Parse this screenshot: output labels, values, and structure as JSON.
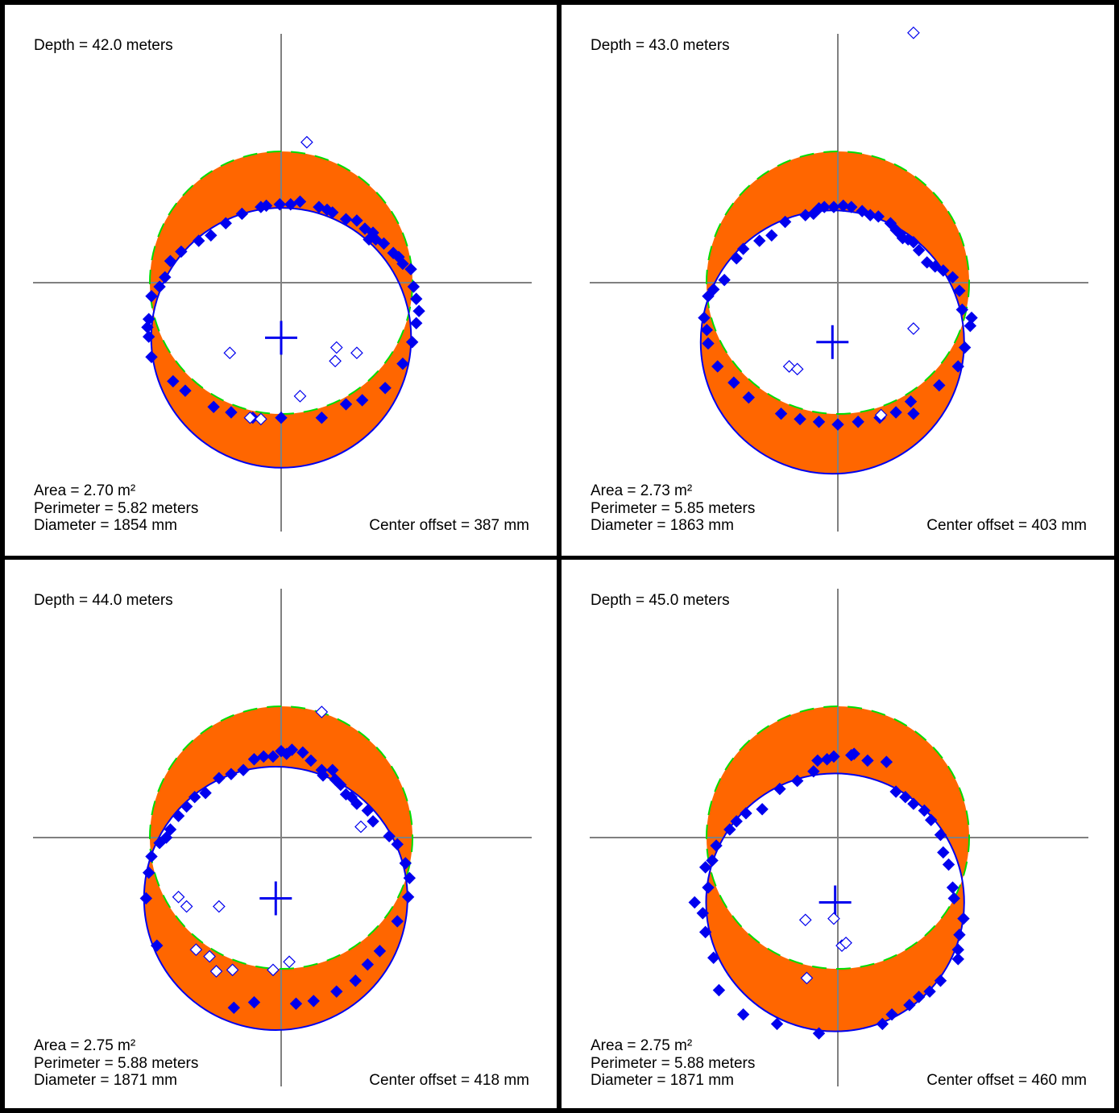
{
  "colors": {
    "measured": "#0000ee",
    "design": "#00dd00",
    "overbreak": "#ff6600",
    "axes": "#808080",
    "border": "#000000"
  },
  "chart_data": [
    {
      "type": "scatter",
      "depth_label": "Depth = 42.0 meters",
      "area_label": "Area = 2.70 m²",
      "perimeter_label": "Perimeter = 5.82 meters",
      "diameter_label": "Diameter = 1854 mm",
      "offset_label": "Center offset = 387 mm",
      "design_radius": 972,
      "fitted_center": [
        0,
        -408
      ],
      "fitted_radius": 962,
      "measured_points": [
        [
          -990,
          -330
        ],
        [
          -980,
          -270
        ],
        [
          -960,
          -100
        ],
        [
          -900,
          -30
        ],
        [
          -860,
          40
        ],
        [
          -820,
          160
        ],
        [
          -740,
          230
        ],
        [
          -610,
          310
        ],
        [
          -520,
          350
        ],
        [
          -410,
          440
        ],
        [
          -290,
          510
        ],
        [
          -150,
          560
        ],
        [
          -110,
          570
        ],
        [
          -10,
          580
        ],
        [
          70,
          580
        ],
        [
          140,
          600
        ],
        [
          280,
          560
        ],
        [
          340,
          540
        ],
        [
          380,
          520
        ],
        [
          480,
          470
        ],
        [
          560,
          460
        ],
        [
          620,
          400
        ],
        [
          680,
          370
        ],
        [
          650,
          320
        ],
        [
          700,
          320
        ],
        [
          760,
          290
        ],
        [
          830,
          220
        ],
        [
          870,
          190
        ],
        [
          900,
          140
        ],
        [
          960,
          100
        ],
        [
          980,
          -30
        ],
        [
          1000,
          -120
        ],
        [
          1020,
          -210
        ],
        [
          1000,
          -300
        ],
        [
          970,
          -440
        ],
        [
          900,
          -600
        ],
        [
          770,
          -780
        ],
        [
          600,
          -870
        ],
        [
          480,
          -900
        ],
        [
          300,
          -1000
        ],
        [
          0,
          -1000
        ],
        [
          -210,
          -1000
        ],
        [
          -370,
          -960
        ],
        [
          -500,
          -920
        ],
        [
          -710,
          -800
        ],
        [
          -800,
          -730
        ],
        [
          -960,
          -550
        ],
        [
          -980,
          -400
        ]
      ],
      "outlier_points": [
        [
          190,
          1040
        ],
        [
          -380,
          -520
        ],
        [
          400,
          -580
        ],
        [
          140,
          -840
        ],
        [
          -230,
          -1000
        ],
        [
          -150,
          -1010
        ],
        [
          410,
          -480
        ],
        [
          560,
          -520
        ]
      ],
      "show_design_circle": true
    },
    {
      "type": "scatter",
      "depth_label": "Depth = 43.0 meters",
      "area_label": "Area = 2.73 m²",
      "perimeter_label": "Perimeter = 5.85 meters",
      "diameter_label": "Diameter = 1863 mm",
      "offset_label": "Center offset = 403 mm",
      "design_radius": 972,
      "fitted_center": [
        -40,
        -440
      ],
      "fitted_radius": 975,
      "measured_points": [
        [
          -990,
          -260
        ],
        [
          -960,
          -100
        ],
        [
          -920,
          -50
        ],
        [
          -840,
          20
        ],
        [
          -750,
          180
        ],
        [
          -700,
          250
        ],
        [
          -580,
          310
        ],
        [
          -490,
          350
        ],
        [
          -390,
          450
        ],
        [
          -240,
          500
        ],
        [
          -180,
          510
        ],
        [
          -140,
          550
        ],
        [
          -100,
          560
        ],
        [
          -30,
          560
        ],
        [
          40,
          570
        ],
        [
          100,
          560
        ],
        [
          180,
          530
        ],
        [
          240,
          500
        ],
        [
          300,
          490
        ],
        [
          390,
          440
        ],
        [
          460,
          360
        ],
        [
          430,
          390
        ],
        [
          480,
          330
        ],
        [
          520,
          320
        ],
        [
          560,
          300
        ],
        [
          600,
          240
        ],
        [
          660,
          150
        ],
        [
          720,
          120
        ],
        [
          780,
          90
        ],
        [
          850,
          40
        ],
        [
          900,
          -60
        ],
        [
          920,
          -200
        ],
        [
          990,
          -260
        ],
        [
          980,
          -320
        ],
        [
          940,
          -480
        ],
        [
          890,
          -620
        ],
        [
          750,
          -760
        ],
        [
          540,
          -880
        ],
        [
          430,
          -960
        ],
        [
          310,
          -1000
        ],
        [
          150,
          -1030
        ],
        [
          0,
          -1050
        ],
        [
          -140,
          -1030
        ],
        [
          -280,
          -1010
        ],
        [
          -420,
          -970
        ],
        [
          -660,
          -850
        ],
        [
          -770,
          -740
        ],
        [
          -890,
          -620
        ],
        [
          -960,
          -450
        ],
        [
          -970,
          -350
        ],
        [
          560,
          -970
        ]
      ],
      "outlier_points": [
        [
          560,
          1850
        ],
        [
          560,
          -340
        ],
        [
          -360,
          -620
        ],
        [
          -300,
          -640
        ],
        [
          320,
          -980
        ]
      ],
      "show_design_circle": true
    },
    {
      "type": "scatter",
      "depth_label": "Depth = 44.0 meters",
      "area_label": "Area = 2.75 m²",
      "perimeter_label": "Perimeter = 5.88 meters",
      "diameter_label": "Diameter = 1871 mm",
      "offset_label": "Center offset = 418 mm",
      "design_radius": 972,
      "fitted_center": [
        -40,
        -450
      ],
      "fitted_radius": 975,
      "measured_points": [
        [
          -1000,
          -450
        ],
        [
          -980,
          -260
        ],
        [
          -960,
          -140
        ],
        [
          -900,
          -40
        ],
        [
          -850,
          0
        ],
        [
          -820,
          60
        ],
        [
          -760,
          160
        ],
        [
          -700,
          230
        ],
        [
          -640,
          300
        ],
        [
          -560,
          330
        ],
        [
          -460,
          440
        ],
        [
          -370,
          470
        ],
        [
          -280,
          500
        ],
        [
          -200,
          580
        ],
        [
          -130,
          600
        ],
        [
          -60,
          600
        ],
        [
          0,
          640
        ],
        [
          40,
          620
        ],
        [
          80,
          650
        ],
        [
          160,
          630
        ],
        [
          220,
          570
        ],
        [
          300,
          500
        ],
        [
          310,
          460
        ],
        [
          380,
          500
        ],
        [
          400,
          430
        ],
        [
          440,
          390
        ],
        [
          480,
          320
        ],
        [
          520,
          300
        ],
        [
          560,
          250
        ],
        [
          640,
          200
        ],
        [
          680,
          120
        ],
        [
          800,
          10
        ],
        [
          860,
          -50
        ],
        [
          920,
          -190
        ],
        [
          950,
          -300
        ],
        [
          940,
          -440
        ],
        [
          860,
          -620
        ],
        [
          730,
          -840
        ],
        [
          640,
          -940
        ],
        [
          550,
          -1060
        ],
        [
          410,
          -1140
        ],
        [
          240,
          -1210
        ],
        [
          110,
          -1230
        ],
        [
          -200,
          -1220
        ],
        [
          -350,
          -1260
        ],
        [
          -920,
          -800
        ]
      ],
      "outlier_points": [
        [
          300,
          930
        ],
        [
          590,
          80
        ],
        [
          -760,
          -440
        ],
        [
          -700,
          -510
        ],
        [
          -460,
          -510
        ],
        [
          -630,
          -830
        ],
        [
          -530,
          -880
        ],
        [
          -480,
          -990
        ],
        [
          -360,
          -980
        ],
        [
          -60,
          -980
        ],
        [
          60,
          -920
        ]
      ],
      "show_design_circle": true
    },
    {
      "type": "scatter",
      "depth_label": "Depth = 45.0 meters",
      "area_label": "Area = 2.75 m²",
      "perimeter_label": "Perimeter = 5.88 meters",
      "diameter_label": "Diameter = 1871 mm",
      "offset_label": "Center offset = 460 mm",
      "design_radius": 972,
      "fitted_center": [
        -20,
        -480
      ],
      "fitted_radius": 955,
      "measured_points": [
        [
          -1060,
          -480
        ],
        [
          -1000,
          -560
        ],
        [
          -960,
          -370
        ],
        [
          -980,
          -220
        ],
        [
          -930,
          -170
        ],
        [
          -900,
          -60
        ],
        [
          -800,
          60
        ],
        [
          -750,
          120
        ],
        [
          -680,
          180
        ],
        [
          -560,
          210
        ],
        [
          -430,
          360
        ],
        [
          -300,
          420
        ],
        [
          -180,
          490
        ],
        [
          -150,
          570
        ],
        [
          -80,
          580
        ],
        [
          -30,
          600
        ],
        [
          100,
          610
        ],
        [
          120,
          620
        ],
        [
          220,
          570
        ],
        [
          360,
          560
        ],
        [
          430,
          340
        ],
        [
          500,
          300
        ],
        [
          560,
          250
        ],
        [
          640,
          200
        ],
        [
          690,
          130
        ],
        [
          760,
          20
        ],
        [
          780,
          -110
        ],
        [
          820,
          -200
        ],
        [
          850,
          -370
        ],
        [
          860,
          -450
        ],
        [
          930,
          -600
        ],
        [
          900,
          -720
        ],
        [
          890,
          -830
        ],
        [
          890,
          -900
        ],
        [
          760,
          -1060
        ],
        [
          680,
          -1140
        ],
        [
          600,
          -1180
        ],
        [
          530,
          -1240
        ],
        [
          400,
          -1310
        ],
        [
          330,
          -1380
        ],
        [
          -140,
          -1450
        ],
        [
          -450,
          -1380
        ],
        [
          -700,
          -1310
        ],
        [
          -880,
          -1130
        ],
        [
          -920,
          -890
        ],
        [
          -980,
          -700
        ]
      ],
      "outlier_points": [
        [
          -240,
          -610
        ],
        [
          -30,
          -600
        ],
        [
          30,
          -800
        ],
        [
          60,
          -780
        ],
        [
          -230,
          -1040
        ]
      ],
      "show_design_circle": true
    }
  ]
}
